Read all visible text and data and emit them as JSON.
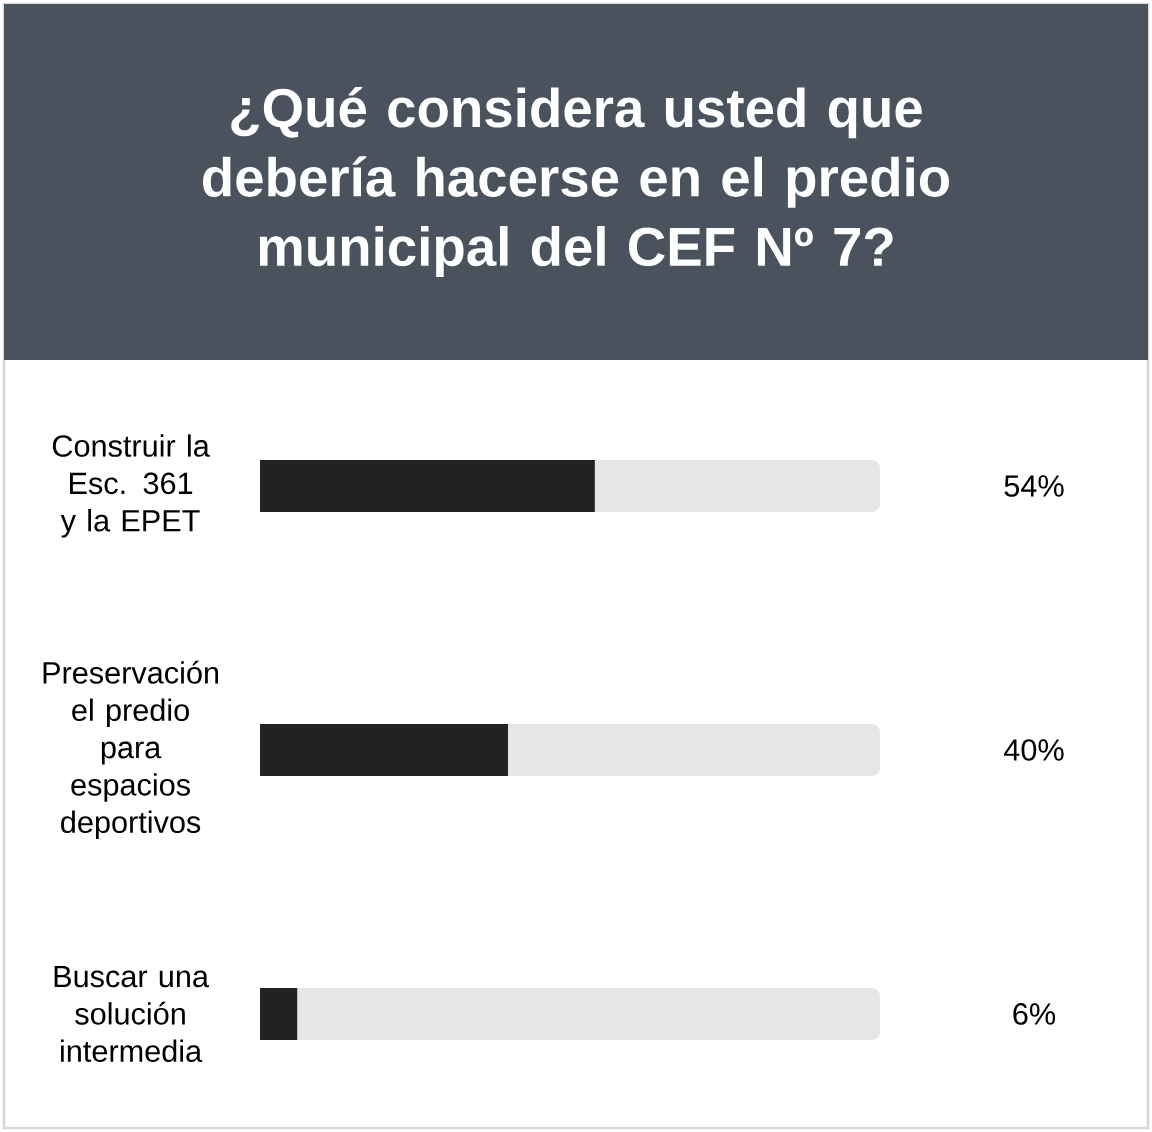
{
  "chart_data": {
    "type": "bar",
    "orientation": "horizontal",
    "title": "¿Qué considera usted que debería hacerse en el predio municipal del CEF Nº 7?",
    "categories": [
      "Construir la Esc. 361 y la EPET",
      "Preservación el predio para espacios deportivos",
      "Buscar una solución intermedia"
    ],
    "values": [
      54,
      40,
      6
    ],
    "value_labels": [
      "54%",
      "40%",
      "6%"
    ],
    "color": "#222222",
    "xlim": [
      0,
      100
    ],
    "tick_labels": "y"
  }
}
